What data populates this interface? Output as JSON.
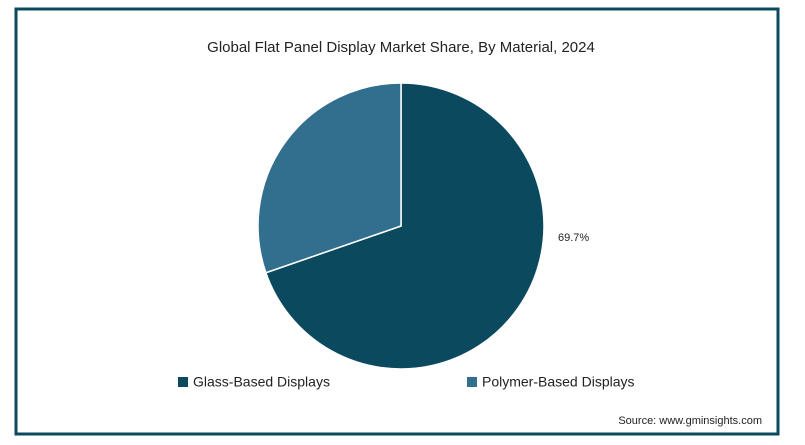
{
  "chart_data": {
    "type": "pie",
    "title": "Global Flat Panel Display Market Share, By Material, 2024",
    "categories": [
      "Glass-Based Displays",
      "Polymer-Based Displays"
    ],
    "values": [
      69.7,
      30.3
    ],
    "value_labels": [
      "69.7%",
      null
    ],
    "colors": [
      "#0b4a5e",
      "#326f8f"
    ],
    "legend": "bottom",
    "source": "Source: www.gminsights.com"
  }
}
